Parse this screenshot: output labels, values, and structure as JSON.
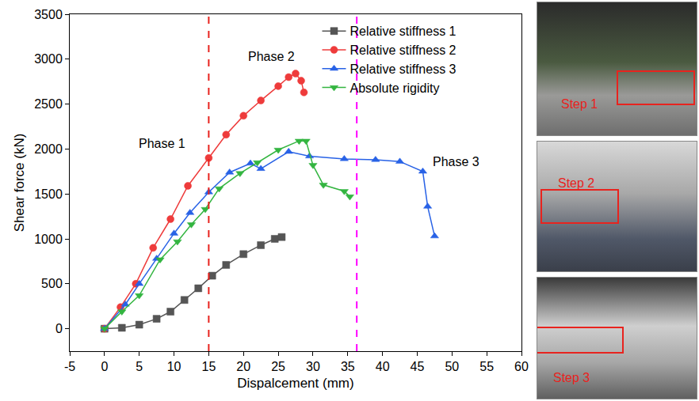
{
  "chart_data": {
    "type": "line",
    "x_label": "Dispalcement (mm)",
    "y_label": "Shear force (kN)",
    "xlim": [
      -5,
      60
    ],
    "xticks": [
      -5,
      0,
      5,
      10,
      15,
      20,
      25,
      30,
      35,
      40,
      45,
      50,
      55,
      60
    ],
    "ylim": [
      -250,
      3500
    ],
    "yticks": [
      0,
      500,
      1000,
      1500,
      2000,
      2500,
      3000,
      3500
    ],
    "grid": false,
    "legend": "upper right",
    "series": [
      {
        "name": "Relative stiffness 1",
        "color": "#555555",
        "marker": "square",
        "x": [
          0,
          2.5,
          5,
          7.5,
          9.5,
          11.5,
          13.5,
          15.5,
          17.5,
          20,
          22.5,
          24.5,
          25.5
        ],
        "values": [
          0,
          10,
          45,
          110,
          190,
          320,
          450,
          590,
          710,
          830,
          930,
          1000,
          1020
        ]
      },
      {
        "name": "Relative stiffness 2",
        "color": "#ee3b3b",
        "marker": "circle",
        "x": [
          0,
          2.3,
          4.5,
          7,
          9.5,
          12,
          15,
          17.5,
          20,
          22.5,
          25,
          26.5,
          27.5,
          28.3,
          28.7
        ],
        "values": [
          0,
          240,
          500,
          900,
          1220,
          1590,
          1900,
          2160,
          2370,
          2540,
          2700,
          2800,
          2840,
          2760,
          2630
        ]
      },
      {
        "name": "Relative stiffness 3",
        "color": "#2862e6",
        "marker": "triangle-up",
        "x": [
          0,
          3,
          5,
          7.5,
          10,
          12.3,
          15,
          18,
          21,
          22.5,
          26.5,
          29.5,
          34.5,
          39,
          42.5,
          45.8,
          46.5,
          47.5
        ],
        "values": [
          0,
          270,
          500,
          780,
          1060,
          1290,
          1520,
          1740,
          1840,
          1780,
          1970,
          1920,
          1890,
          1880,
          1860,
          1750,
          1360,
          1030
        ]
      },
      {
        "name": "Absolute rigidity",
        "color": "#33b540",
        "marker": "triangle-down",
        "x": [
          0,
          2.5,
          5,
          8,
          10.5,
          12.5,
          14.5,
          16.5,
          19.5,
          22,
          25,
          28,
          29,
          30,
          31.5,
          34.5,
          35.3
        ],
        "values": [
          0,
          190,
          370,
          770,
          970,
          1160,
          1330,
          1560,
          1730,
          1850,
          1990,
          2090,
          2090,
          1820,
          1600,
          1530,
          1470
        ]
      }
    ],
    "vlines": [
      {
        "x": 15,
        "color": "#e8231e",
        "line_style": "dash"
      },
      {
        "x": 36.3,
        "color": "#ff00ff",
        "line_style": "dash"
      }
    ],
    "annotations": [
      {
        "text": "Phase 1",
        "x": 8.3,
        "y": 2060
      },
      {
        "text": "Phase 2",
        "x": 24,
        "y": 3030
      },
      {
        "text": "Phase 3",
        "x": 50.6,
        "y": 1860
      }
    ],
    "insets": [
      {
        "label": "Step 1"
      },
      {
        "label": "Step 2"
      },
      {
        "label": "Step 3"
      }
    ]
  }
}
